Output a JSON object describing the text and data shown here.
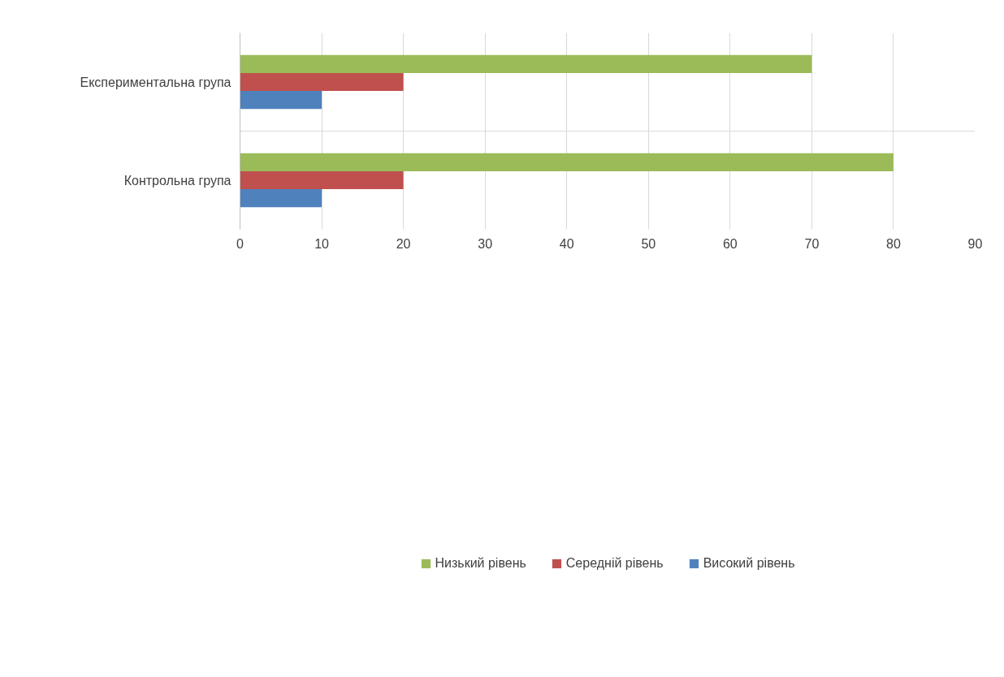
{
  "chart_data": {
    "type": "bar",
    "orientation": "horizontal",
    "categories": [
      "Експериментальна група",
      "Контрольна група"
    ],
    "series": [
      {
        "name": "Низький рівень",
        "color": "#9bbb59",
        "values": [
          70,
          80
        ]
      },
      {
        "name": "Середній рівень",
        "color": "#c0504d",
        "values": [
          20,
          20
        ]
      },
      {
        "name": "Високий рівень",
        "color": "#4f81bd",
        "values": [
          10,
          10
        ]
      }
    ],
    "xlim": [
      0,
      90
    ],
    "xticks": [
      0,
      10,
      20,
      30,
      40,
      50,
      60,
      70,
      80,
      90
    ],
    "grid": true,
    "legend": "bottom"
  }
}
